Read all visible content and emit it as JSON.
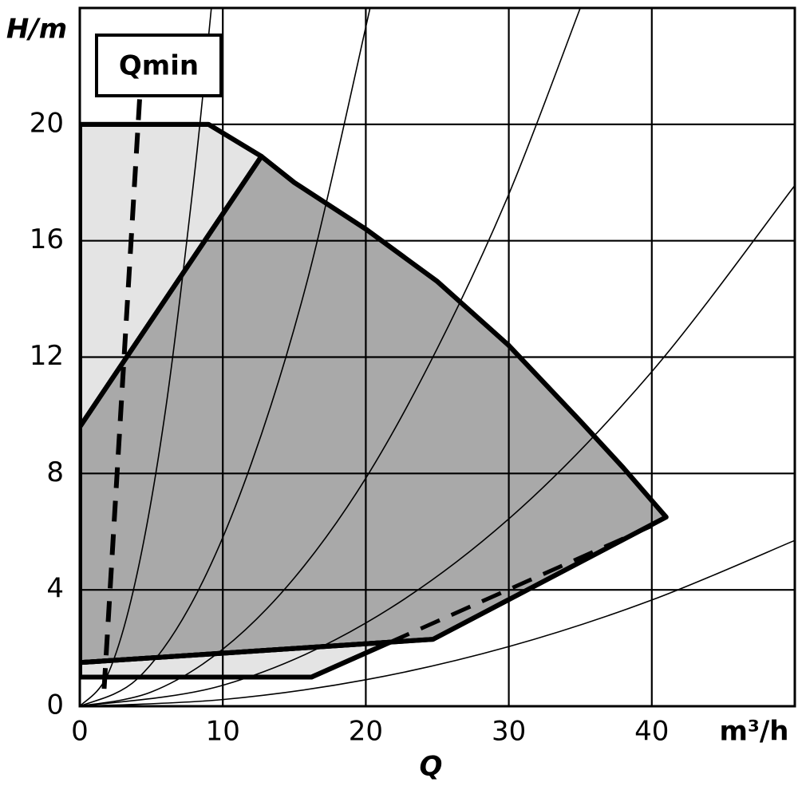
{
  "chart_data": {
    "type": "line",
    "y_label": "H/m",
    "x_unit": "m³/h",
    "x_label": "Q",
    "annotation": "Qmin",
    "xlim": [
      0,
      50
    ],
    "ylim": [
      0,
      24
    ],
    "xticks": [
      0,
      10,
      20,
      30,
      40
    ],
    "yticks": [
      0,
      4,
      8,
      12,
      16,
      20
    ],
    "grid": true,
    "series": [
      {
        "x": [
          0,
          9,
          12.7,
          0
        ],
        "values": [
          20,
          20,
          18.9,
          9.6
        ],
        "fill": "#e4e4e4",
        "color": "#000000",
        "width": 6,
        "closed": true
      },
      {
        "x": [
          0,
          12.7,
          15,
          20,
          25,
          30,
          35,
          38,
          41,
          24.7,
          0
        ],
        "values": [
          9.6,
          18.9,
          18.0,
          16.4,
          14.6,
          12.4,
          9.8,
          8.2,
          6.5,
          2.3,
          1.5
        ],
        "fill": "#a9a9a9",
        "color": "#000000",
        "width": 6,
        "closed": true
      },
      {
        "x": [
          0,
          21.7,
          16.2,
          0
        ],
        "values": [
          1.5,
          2.2,
          1.0,
          1.0
        ],
        "fill": "#e4e4e4",
        "color": "#000000",
        "width": 6,
        "closed": true
      },
      {
        "x": [
          0,
          2,
          4,
          6,
          8,
          9.2
        ],
        "values": [
          0,
          1.14,
          4.54,
          10.2,
          18.2,
          24
        ],
        "color": "#000000",
        "width": 1.6,
        "smooth": true
      },
      {
        "x": [
          0,
          4,
          8,
          12,
          16,
          20.3
        ],
        "values": [
          0,
          0.93,
          3.71,
          8.35,
          14.8,
          24
        ],
        "color": "#000000",
        "width": 1.6,
        "smooth": true
      },
      {
        "x": [
          0,
          5,
          10,
          15,
          20,
          25,
          30,
          35
        ],
        "values": [
          0,
          0.49,
          1.96,
          4.41,
          7.84,
          12.3,
          17.6,
          24
        ],
        "color": "#000000",
        "width": 1.6,
        "smooth": true
      },
      {
        "x": [
          0,
          10,
          20,
          30,
          40,
          50
        ],
        "values": [
          0,
          0.72,
          2.86,
          6.44,
          11.5,
          17.9
        ],
        "color": "#000000",
        "width": 1.6,
        "smooth": true
      },
      {
        "x": [
          0,
          10,
          20,
          30,
          40,
          50
        ],
        "values": [
          0,
          0.23,
          0.91,
          2.05,
          3.65,
          5.7
        ],
        "color": "#000000",
        "width": 1.6,
        "smooth": true
      },
      {
        "x": [
          1.7,
          4.2
        ],
        "values": [
          0.6,
          21.0
        ],
        "color": "#000000",
        "width": 6,
        "dashed": true
      },
      {
        "x": [
          21.7,
          40
        ],
        "values": [
          2.2,
          6.2
        ],
        "color": "#000000",
        "width": 5,
        "dashed": true
      }
    ]
  }
}
